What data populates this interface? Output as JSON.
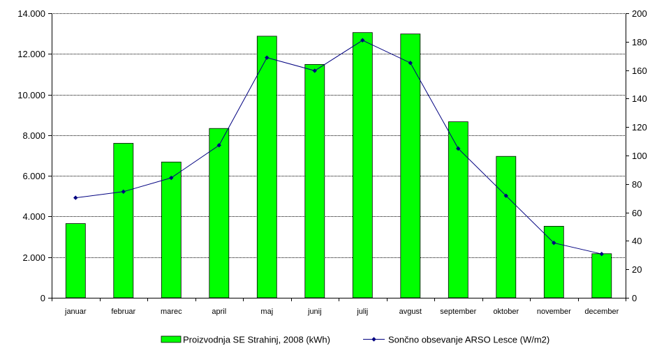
{
  "chart_data": {
    "type": "bar",
    "categories": [
      "januar",
      "februar",
      "marec",
      "april",
      "maj",
      "junij",
      "julij",
      "avgust",
      "september",
      "oktober",
      "november",
      "december"
    ],
    "series": [
      {
        "name": "Proizvodnja SE Strahinj, 2008 (kWh)",
        "kind": "bar",
        "axis": "left",
        "color": "#00ff00",
        "values": [
          3650,
          7600,
          6680,
          8330,
          12870,
          11480,
          13050,
          12980,
          8660,
          6960,
          3520,
          2170
        ]
      },
      {
        "name": "Sončno obsevanje ARSO Lesce (W/m2)",
        "kind": "line",
        "axis": "right",
        "color": "#000080",
        "values": [
          70.3,
          74.6,
          84.3,
          107.2,
          168.8,
          159.6,
          181.0,
          165.1,
          104.9,
          71.7,
          38.6,
          30.8
        ]
      }
    ],
    "y_left": {
      "ylim": [
        0,
        14000
      ],
      "ticks": [
        0,
        2000,
        4000,
        6000,
        8000,
        10000,
        12000,
        14000
      ],
      "tick_labels": [
        "0",
        "2.000",
        "4.000",
        "6.000",
        "8.000",
        "10.000",
        "12.000",
        "14.000"
      ]
    },
    "y_right": {
      "ylim": [
        0,
        200
      ],
      "ticks": [
        0,
        20,
        40,
        60,
        80,
        100,
        120,
        140,
        160,
        180,
        200
      ],
      "tick_labels": [
        "0",
        "20",
        "40",
        "60",
        "80",
        "100",
        "120",
        "140",
        "160",
        "180",
        "200"
      ]
    },
    "grid": true,
    "legend_position": "bottom"
  }
}
